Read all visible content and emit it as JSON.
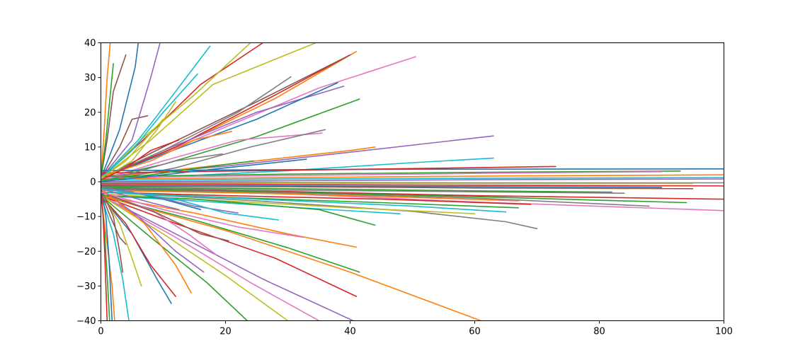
{
  "chart_data": {
    "type": "line",
    "title": "",
    "xlabel": "",
    "ylabel": "",
    "xlim": [
      0,
      100
    ],
    "ylim": [
      -40,
      40
    ],
    "grid": false,
    "legend": "none",
    "x_ticks": [
      "0",
      "20",
      "40",
      "60",
      "80",
      "100"
    ],
    "y_ticks": [
      "40",
      "30",
      "20",
      "10",
      "0",
      "−10",
      "−20",
      "−30",
      "−40"
    ],
    "x_tick_values": [
      0,
      20,
      40,
      60,
      80,
      100
    ],
    "y_tick_values": [
      40,
      30,
      20,
      10,
      0,
      -10,
      -20,
      -30,
      -40
    ],
    "palette": [
      "#1f77b4",
      "#ff7f0e",
      "#2ca02c",
      "#d62728",
      "#9467bd",
      "#8c564b",
      "#e377c2",
      "#7f7f7f",
      "#bcbd22",
      "#17becf"
    ],
    "series": [
      {
        "color": "#9467bd",
        "x": [
          0,
          20,
          40,
          63
        ],
        "y": [
          1.5,
          4.5,
          8.5,
          13.2
        ]
      },
      {
        "color": "#17becf",
        "x": [
          0,
          30,
          50,
          63
        ],
        "y": [
          0.5,
          3.2,
          5.5,
          6.8
        ]
      },
      {
        "color": "#ff7f0e",
        "x": [
          0,
          20,
          40,
          44
        ],
        "y": [
          1,
          5,
          9,
          10
        ]
      },
      {
        "color": "#e377c2",
        "x": [
          0,
          15,
          35,
          50.5
        ],
        "y": [
          1,
          12,
          27,
          36
        ]
      },
      {
        "color": "#ff7f0e",
        "x": [
          0,
          12,
          28,
          41
        ],
        "y": [
          1,
          10,
          24,
          37.5
        ]
      },
      {
        "color": "#d62728",
        "x": [
          0,
          12,
          28,
          40
        ],
        "y": [
          1,
          10,
          25,
          36.5
        ]
      },
      {
        "color": "#8c564b",
        "x": [
          0,
          10,
          25,
          40
        ],
        "y": [
          1,
          10,
          23,
          36.5
        ]
      },
      {
        "color": "#9467bd",
        "x": [
          0,
          10,
          25,
          39
        ],
        "y": [
          1,
          9,
          20,
          27.5
        ]
      },
      {
        "color": "#1f77b4",
        "x": [
          0,
          10,
          25,
          38
        ],
        "y": [
          1,
          8,
          18,
          28.5
        ]
      },
      {
        "color": "#2ca02c",
        "x": [
          0,
          10,
          25,
          41.5
        ],
        "y": [
          1,
          5,
          13,
          23.8
        ]
      },
      {
        "color": "#7f7f7f",
        "x": [
          0,
          10,
          22,
          30.5
        ],
        "y": [
          1,
          9,
          20,
          30.2
        ]
      },
      {
        "color": "#bcbd22",
        "x": [
          0,
          8,
          18,
          34.5
        ],
        "y": [
          1,
          12,
          28,
          40
        ]
      },
      {
        "color": "#d62728",
        "x": [
          0,
          8,
          16,
          26
        ],
        "y": [
          1,
          14,
          28,
          40
        ]
      },
      {
        "color": "#bcbd22",
        "x": [
          0,
          7,
          15,
          24
        ],
        "y": [
          1,
          13,
          25,
          40
        ]
      },
      {
        "color": "#e377c2",
        "x": [
          0,
          10,
          22,
          35.5
        ],
        "y": [
          0.5,
          6,
          12,
          14
        ]
      },
      {
        "color": "#7f7f7f",
        "x": [
          0,
          12,
          24,
          36
        ],
        "y": [
          0,
          4,
          10,
          15
        ]
      },
      {
        "color": "#17becf",
        "x": [
          0,
          6,
          12,
          17.5
        ],
        "y": [
          1,
          12,
          26,
          39
        ]
      },
      {
        "color": "#8c564b",
        "x": [
          0,
          3,
          5,
          7.5
        ],
        "y": [
          1,
          10,
          18,
          19
        ]
      },
      {
        "color": "#1f77b4",
        "x": [
          0,
          3,
          5.5,
          6
        ],
        "y": [
          1,
          15,
          33,
          40
        ]
      },
      {
        "color": "#9467bd",
        "x": [
          0,
          5,
          8,
          9.5
        ],
        "y": [
          1,
          12,
          30,
          40
        ]
      },
      {
        "color": "#8c564b",
        "x": [
          0,
          1,
          2,
          4
        ],
        "y": [
          1,
          12,
          26,
          36.5
        ]
      },
      {
        "color": "#ff7f0e",
        "x": [
          0,
          0.5,
          1,
          1.5
        ],
        "y": [
          1,
          14,
          30,
          40
        ]
      },
      {
        "color": "#2ca02c",
        "x": [
          0,
          0.8,
          1.5,
          2
        ],
        "y": [
          1,
          12,
          25,
          34
        ]
      },
      {
        "color": "#bcbd22",
        "x": [
          0,
          5,
          9,
          12
        ],
        "y": [
          0.5,
          6,
          15,
          23
        ]
      },
      {
        "color": "#1f77b4",
        "x": [
          0,
          20,
          50,
          100
        ],
        "y": [
          3.2,
          3.4,
          3.6,
          3.7
        ]
      },
      {
        "color": "#d62728",
        "x": [
          0,
          25,
          50,
          73
        ],
        "y": [
          2.5,
          3.2,
          3.8,
          4.4
        ]
      },
      {
        "color": "#2ca02c",
        "x": [
          0,
          30,
          60,
          93
        ],
        "y": [
          1.5,
          2.2,
          2.7,
          3.1
        ]
      },
      {
        "color": "#e377c2",
        "x": [
          0,
          30,
          60,
          90
        ],
        "y": [
          1.2,
          1.8,
          2.4,
          2.9
        ]
      },
      {
        "color": "#ff7f0e",
        "x": [
          0,
          30,
          60,
          100
        ],
        "y": [
          0.8,
          1.2,
          1.6,
          2.0
        ]
      },
      {
        "color": "#17becf",
        "x": [
          0,
          30,
          60,
          100
        ],
        "y": [
          0.4,
          0.8,
          1.0,
          1.2
        ]
      },
      {
        "color": "#9467bd",
        "x": [
          0,
          30,
          60,
          100
        ],
        "y": [
          0,
          0.3,
          0.6,
          0.8
        ]
      },
      {
        "color": "#7f7f7f",
        "x": [
          0,
          30,
          60,
          100
        ],
        "y": [
          -0.2,
          -0.2,
          -0.3,
          -0.3
        ]
      },
      {
        "color": "#bcbd22",
        "x": [
          0,
          30,
          60,
          95
        ],
        "y": [
          -0.6,
          -0.4,
          -0.5,
          -0.5
        ]
      },
      {
        "color": "#1f77b4",
        "x": [
          0,
          30,
          60,
          90
        ],
        "y": [
          -1,
          -1.2,
          -1.4,
          -1.6
        ]
      },
      {
        "color": "#d62728",
        "x": [
          0,
          30,
          60,
          100
        ],
        "y": [
          -0.6,
          -0.8,
          -1.0,
          -1.2
        ]
      },
      {
        "color": "#8c564b",
        "x": [
          0,
          30,
          60,
          95
        ],
        "y": [
          -1.2,
          -1.4,
          -1.8,
          -2.0
        ]
      },
      {
        "color": "#2ca02c",
        "x": [
          0,
          30,
          60,
          82
        ],
        "y": [
          -1.5,
          -2.0,
          -2.6,
          -3.0
        ]
      },
      {
        "color": "#7f7f7f",
        "x": [
          0,
          30,
          60,
          84
        ],
        "y": [
          -1.8,
          -2.4,
          -2.9,
          -3.3
        ]
      },
      {
        "color": "#e377c2",
        "x": [
          0,
          30,
          60,
          100
        ],
        "y": [
          -2,
          -3.5,
          -5.8,
          -8.3
        ]
      },
      {
        "color": "#d62728",
        "x": [
          0,
          30,
          60,
          100
        ],
        "y": [
          -2,
          -2.8,
          -4.0,
          -5.0
        ]
      },
      {
        "color": "#2ca02c",
        "x": [
          0,
          30,
          60,
          94
        ],
        "y": [
          -2,
          -3.0,
          -4.3,
          -6.0
        ]
      },
      {
        "color": "#7f7f7f",
        "x": [
          0,
          30,
          60,
          88
        ],
        "y": [
          -2.2,
          -3.2,
          -4.7,
          -7.0
        ]
      },
      {
        "color": "#ff7f0e",
        "x": [
          0,
          25,
          50,
          67
        ],
        "y": [
          -2.5,
          -3.3,
          -4.5,
          -5.5
        ]
      },
      {
        "color": "#d62728",
        "x": [
          0,
          20,
          45,
          69
        ],
        "y": [
          -3,
          -4,
          -5,
          -6.5
        ]
      },
      {
        "color": "#2ca02c",
        "x": [
          0,
          20,
          45,
          67
        ],
        "y": [
          -3,
          -4.5,
          -6,
          -7.5
        ]
      },
      {
        "color": "#7f7f7f",
        "x": [
          0,
          25,
          50,
          65,
          70
        ],
        "y": [
          -3,
          -5.5,
          -8.5,
          -11.5,
          -13.5
        ]
      },
      {
        "color": "#17becf",
        "x": [
          0,
          25,
          50,
          65
        ],
        "y": [
          -3,
          -5,
          -7,
          -8.7
        ]
      },
      {
        "color": "#bcbd22",
        "x": [
          0,
          20,
          40,
          60
        ],
        "y": [
          -3.5,
          -5.5,
          -7.5,
          -9.2
        ]
      },
      {
        "color": "#17becf",
        "x": [
          0,
          15,
          32,
          48
        ],
        "y": [
          -4,
          -5.5,
          -7.5,
          -9.2
        ]
      },
      {
        "color": "#2ca02c",
        "x": [
          0,
          15,
          35,
          44
        ],
        "y": [
          -4,
          -5,
          -8,
          -12.5
        ]
      },
      {
        "color": "#ff7f0e",
        "x": [
          0,
          15,
          30,
          41
        ],
        "y": [
          -4,
          -9,
          -15,
          -18.8
        ]
      },
      {
        "color": "#2ca02c",
        "x": [
          0,
          15,
          30,
          41.5
        ],
        "y": [
          -4,
          -11,
          -19,
          -26
        ]
      },
      {
        "color": "#d62728",
        "x": [
          0,
          12,
          28,
          41
        ],
        "y": [
          -4,
          -12,
          -22,
          -33
        ]
      },
      {
        "color": "#ff7f0e",
        "x": [
          0,
          20,
          40,
          61
        ],
        "y": [
          -4,
          -14,
          -26,
          -40
        ]
      },
      {
        "color": "#9467bd",
        "x": [
          0,
          12,
          26,
          40.5
        ],
        "y": [
          -4,
          -15,
          -28,
          -40
        ]
      },
      {
        "color": "#e377c2",
        "x": [
          0,
          12,
          24,
          35
        ],
        "y": [
          -4,
          -16,
          -29,
          -40
        ]
      },
      {
        "color": "#bcbd22",
        "x": [
          0,
          10,
          20,
          30
        ],
        "y": [
          -4,
          -15,
          -27,
          -40
        ]
      },
      {
        "color": "#2ca02c",
        "x": [
          0,
          8,
          17,
          23.5
        ],
        "y": [
          -4,
          -16,
          -29,
          -40
        ]
      },
      {
        "color": "#1f77b4",
        "x": [
          0,
          5,
          9,
          11.3
        ],
        "y": [
          -4,
          -15,
          -28,
          -35
        ]
      },
      {
        "color": "#d62728",
        "x": [
          0,
          4,
          8,
          12
        ],
        "y": [
          -4,
          -12,
          -24,
          -33
        ]
      },
      {
        "color": "#17becf",
        "x": [
          0,
          2,
          3.5,
          4.5
        ],
        "y": [
          -4,
          -15,
          -28,
          -40
        ]
      },
      {
        "color": "#ff7f0e",
        "x": [
          0,
          1,
          1.8,
          2.2
        ],
        "y": [
          -4,
          -18,
          -30,
          -40
        ]
      },
      {
        "color": "#2ca02c",
        "x": [
          0,
          0.6,
          1.1,
          1.4
        ],
        "y": [
          -3,
          -15,
          -30,
          -40
        ]
      },
      {
        "color": "#e377c2",
        "x": [
          0,
          8,
          14,
          18.5
        ],
        "y": [
          -3,
          -8,
          -15,
          -21
        ]
      },
      {
        "color": "#9467bd",
        "x": [
          0,
          4,
          8,
          12.5
        ],
        "y": [
          -2,
          -4,
          -6,
          -8
        ]
      },
      {
        "color": "#8c564b",
        "x": [
          0,
          1.5,
          3,
          4
        ],
        "y": [
          -3,
          -10,
          -16,
          -18
        ]
      },
      {
        "color": "#bcbd22",
        "x": [
          0,
          3,
          5,
          6.5
        ],
        "y": [
          -3,
          -12,
          -22,
          -30
        ]
      },
      {
        "color": "#1f77b4",
        "x": [
          0,
          5,
          10,
          16
        ],
        "y": [
          -2,
          -3,
          -5,
          -8
        ]
      },
      {
        "color": "#9467bd",
        "x": [
          0,
          8,
          15,
          22
        ],
        "y": [
          -1.5,
          -4,
          -7,
          -9
        ]
      },
      {
        "color": "#8c564b",
        "x": [
          0,
          2,
          3,
          3.5
        ],
        "y": [
          -2,
          -10,
          -20,
          -26
        ]
      },
      {
        "color": "#1f77b4",
        "x": [
          0,
          0.8,
          1.3,
          1.8
        ],
        "y": [
          -1,
          -10,
          -22,
          -40
        ]
      },
      {
        "color": "#d62728",
        "x": [
          0,
          0.3,
          0.6,
          1
        ],
        "y": [
          -1,
          -8,
          -20,
          -40
        ]
      },
      {
        "color": "#9467bd",
        "x": [
          0,
          6,
          12,
          16.5
        ],
        "y": [
          -2,
          -10,
          -20,
          -26
        ]
      },
      {
        "color": "#ff7f0e",
        "x": [
          0,
          7,
          12,
          14.5
        ],
        "y": [
          -2,
          -12,
          -24,
          -32
        ]
      },
      {
        "color": "#8c564b",
        "x": [
          0,
          9,
          16,
          20.5
        ],
        "y": [
          -3,
          -9,
          -15,
          -17
        ]
      },
      {
        "color": "#17becf",
        "x": [
          0,
          12,
          20,
          28.5
        ],
        "y": [
          -2,
          -5,
          -9,
          -11
        ]
      },
      {
        "color": "#e377c2",
        "x": [
          0,
          10,
          22,
          32.5
        ],
        "y": [
          -3,
          -8,
          -13,
          -16
        ]
      },
      {
        "color": "#ff7f0e",
        "x": [
          0,
          8,
          15,
          21
        ],
        "y": [
          1.5,
          6,
          12,
          14.5
        ]
      },
      {
        "color": "#17becf",
        "x": [
          0,
          5,
          10,
          15.5
        ],
        "y": [
          1,
          9,
          20,
          31
        ]
      },
      {
        "color": "#bcbd22",
        "x": [
          0,
          4,
          7,
          10
        ],
        "y": [
          1,
          6,
          12,
          18
        ]
      },
      {
        "color": "#d62728",
        "x": [
          0,
          4,
          8,
          12.5
        ],
        "y": [
          0.5,
          4,
          9,
          12
        ]
      },
      {
        "color": "#7f7f7f",
        "x": [
          0,
          6,
          12,
          19.5
        ],
        "y": [
          0,
          3,
          6,
          8
        ]
      },
      {
        "color": "#2ca02c",
        "x": [
          0,
          8,
          16,
          24.5
        ],
        "y": [
          0.5,
          2,
          4,
          6
        ]
      },
      {
        "color": "#1f77b4",
        "x": [
          0,
          10,
          20,
          33
        ],
        "y": [
          0,
          2,
          4,
          6.5
        ]
      }
    ]
  }
}
